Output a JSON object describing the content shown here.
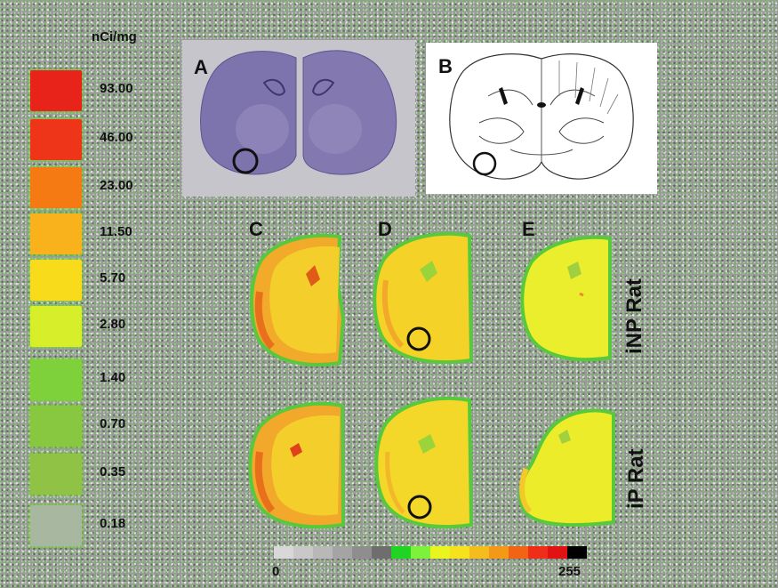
{
  "scale": {
    "unit": "nCi/mg",
    "standards": [
      {
        "label": "93.00",
        "color": "#e8231a"
      },
      {
        "label": "46.00",
        "color": "#ee3519"
      },
      {
        "label": "23.00",
        "color": "#f57a14"
      },
      {
        "label": "11.50",
        "color": "#f9b21b"
      },
      {
        "label": "5.70",
        "color": "#f8dc1c"
      },
      {
        "label": "2.80",
        "color": "#d7ee2a"
      },
      {
        "label": "1.40",
        "color": "#7ed13b"
      },
      {
        "label": "0.70",
        "color": "#87c840"
      },
      {
        "label": "0.35",
        "color": "#8fc245"
      },
      {
        "label": "0.18",
        "color": "#a8b8a0"
      }
    ]
  },
  "panels": {
    "a": "A",
    "b": "B",
    "c": "C",
    "d": "D",
    "e": "E"
  },
  "rows": {
    "inp": "iNP Rat",
    "ip": "iP Rat"
  },
  "colorbar": {
    "min": "0",
    "max": "255",
    "colors": [
      "#d8d8d8",
      "#c8c8c8",
      "#b8b8b8",
      "#a4a4a4",
      "#8e8e8e",
      "#6e6e6e",
      "#1fd422",
      "#7ef23a",
      "#e9f51f",
      "#f6e21c",
      "#f4bd1d",
      "#f49818",
      "#f26415",
      "#ee2e18",
      "#e01212",
      "#000000"
    ]
  },
  "colors": {
    "nissl": "#7a6fa8",
    "section_hot": "#f08a2a",
    "section_warm": "#f4c623",
    "section_cool": "#e8ec2a",
    "edge": "#58c83c"
  }
}
